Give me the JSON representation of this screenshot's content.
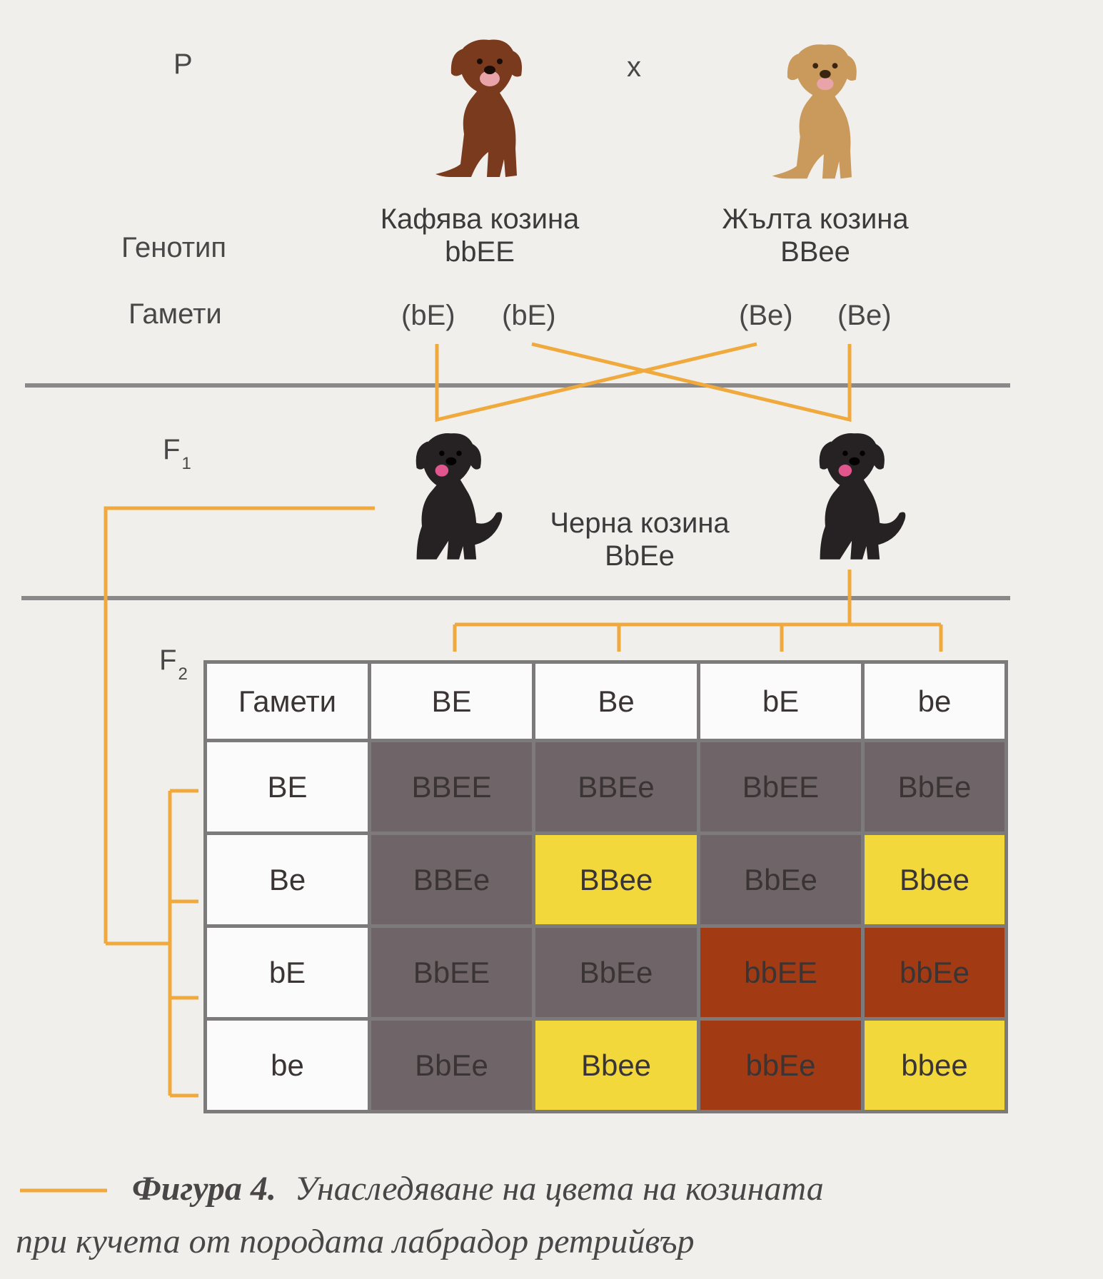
{
  "parents": {
    "p_label": "P",
    "cross_symbol": "x",
    "genotype_label": "Генотип",
    "gametes_label": "Гамети",
    "left": {
      "phenotype": "Кафява козина",
      "genotype": "bbEE",
      "gametes": [
        "(bE)",
        "(bE)"
      ],
      "coat_color": "#7a3a1e"
    },
    "right": {
      "phenotype": "Жълта козина",
      "genotype": "BBee",
      "gametes": [
        "(Be)",
        "(Be)"
      ],
      "coat_color": "#c99a5c"
    }
  },
  "f1": {
    "label": "F",
    "sub": "1",
    "phenotype": "Черна козина",
    "genotype": "BbEe",
    "coat_color": "#262122"
  },
  "f2": {
    "label": "F",
    "sub": "2",
    "corner_label": "Гамети",
    "col_gametes": [
      "BE",
      "Be",
      "bE",
      "be"
    ],
    "row_gametes": [
      "BE",
      "Be",
      "bE",
      "be"
    ],
    "cells": [
      [
        {
          "g": "BBEE",
          "c": "black"
        },
        {
          "g": "BBEe",
          "c": "black"
        },
        {
          "g": "BbEE",
          "c": "black"
        },
        {
          "g": "BbEe",
          "c": "black"
        }
      ],
      [
        {
          "g": "BBEe",
          "c": "black"
        },
        {
          "g": "BBee",
          "c": "yellow"
        },
        {
          "g": "BbEe",
          "c": "black"
        },
        {
          "g": "Bbee",
          "c": "yellow"
        }
      ],
      [
        {
          "g": "BbEE",
          "c": "black"
        },
        {
          "g": "BbEe",
          "c": "black"
        },
        {
          "g": "bbEE",
          "c": "brown"
        },
        {
          "g": "bbEe",
          "c": "brown"
        }
      ],
      [
        {
          "g": "BbEe",
          "c": "black"
        },
        {
          "g": "Bbee",
          "c": "yellow"
        },
        {
          "g": "bbEe",
          "c": "brown"
        },
        {
          "g": "bbee",
          "c": "yellow"
        }
      ]
    ]
  },
  "colors": {
    "line_orange": "#f0a93c",
    "divider_gray": "#8a8888",
    "black_cell": "#6f6568",
    "yellow_cell": "#f2d83b",
    "brown_cell": "#a23a13"
  },
  "caption": {
    "figure": "Фигура 4.",
    "text_line1": "Унаследяване на цвета на козината",
    "text_line2": "при кучета от породата лабрадор ретрийвър"
  },
  "icons": [
    "dog-brown-icon",
    "dog-yellow-icon",
    "dog-black-icon"
  ]
}
